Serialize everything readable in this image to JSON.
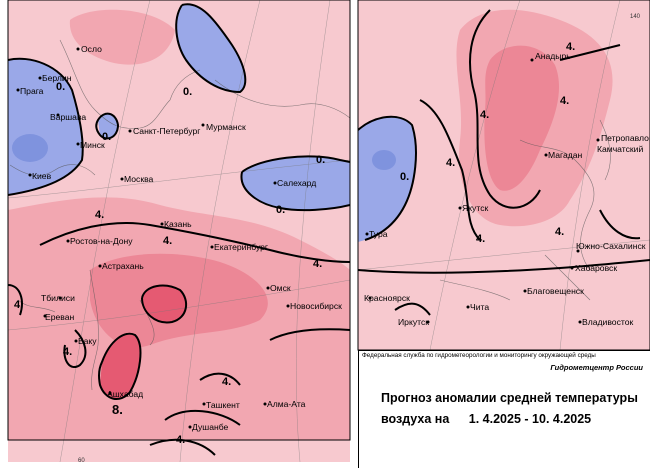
{
  "organization": "Федеральная служба по гидрометеорологии и мониторингу окружающей среды",
  "center": "Гидрометцентр России",
  "title_line1": "Прогноз аномалии средней температуры",
  "title_line2_prefix": "воздуха на",
  "date_from": "1. 4.2025",
  "date_to": "10. 4.2025",
  "date_separator": "-",
  "colors": {
    "frame": "#000000",
    "cold_anomaly": "#9aa8e8",
    "warm_light": "#f7c9cf",
    "warm_medium": "#f09aa6",
    "warm_strong": "#e55a72",
    "background": "#ffffff"
  },
  "legend": {
    "isoline_labels_west": [
      "0.",
      "0.",
      "0.",
      "0.",
      "0.",
      "4.",
      "4.",
      "4.",
      "4.",
      "4.",
      "4.",
      "8.",
      "4."
    ],
    "isoline_labels_east": [
      "4.",
      "4.",
      "4.",
      "4.",
      "4.",
      "4.",
      "0."
    ]
  },
  "tick_labels": {
    "west_lat": "50",
    "bottom_lon": "60",
    "east_lon": "140"
  },
  "cities_west": [
    {
      "name": "Осло",
      "kind": "city"
    },
    {
      "name": "Берлин",
      "kind": "city"
    },
    {
      "name": "Прага",
      "kind": "city"
    },
    {
      "name": "Варшава",
      "kind": "city"
    },
    {
      "name": "Минск",
      "kind": "city"
    },
    {
      "name": "Мурманск",
      "kind": "city"
    },
    {
      "name": "Санкт-Петербург",
      "kind": "city"
    },
    {
      "name": "Киев",
      "kind": "city"
    },
    {
      "name": "Москва",
      "kind": "city"
    },
    {
      "name": "Салехард",
      "kind": "city"
    },
    {
      "name": "Казань",
      "kind": "city"
    },
    {
      "name": "Ростов-на-Дону",
      "kind": "city"
    },
    {
      "name": "Екатеринбург",
      "kind": "city"
    },
    {
      "name": "Астрахань",
      "kind": "city"
    },
    {
      "name": "Омск",
      "kind": "city"
    },
    {
      "name": "Тбилиси",
      "kind": "city"
    },
    {
      "name": "Новосибирск",
      "kind": "city"
    },
    {
      "name": "Ереван",
      "kind": "city"
    },
    {
      "name": "Баку",
      "kind": "city"
    },
    {
      "name": "Ашхабад",
      "kind": "city"
    },
    {
      "name": "Ташкент",
      "kind": "city"
    },
    {
      "name": "Алма-Ата",
      "kind": "city"
    },
    {
      "name": "Душанбе",
      "kind": "city"
    }
  ],
  "cities_east": [
    {
      "name": "Анадырь"
    },
    {
      "name": "Петропавловск"
    },
    {
      "name": "Камчатский"
    },
    {
      "name": "Магадан"
    },
    {
      "name": "Якутск"
    },
    {
      "name": "Тура"
    },
    {
      "name": "Южно-Сахалинск"
    },
    {
      "name": "Хабаровск"
    },
    {
      "name": "Красноярск"
    },
    {
      "name": "Чита"
    },
    {
      "name": "Благовещенск"
    },
    {
      "name": "Иркутск"
    },
    {
      "name": "Владивосток"
    }
  ]
}
